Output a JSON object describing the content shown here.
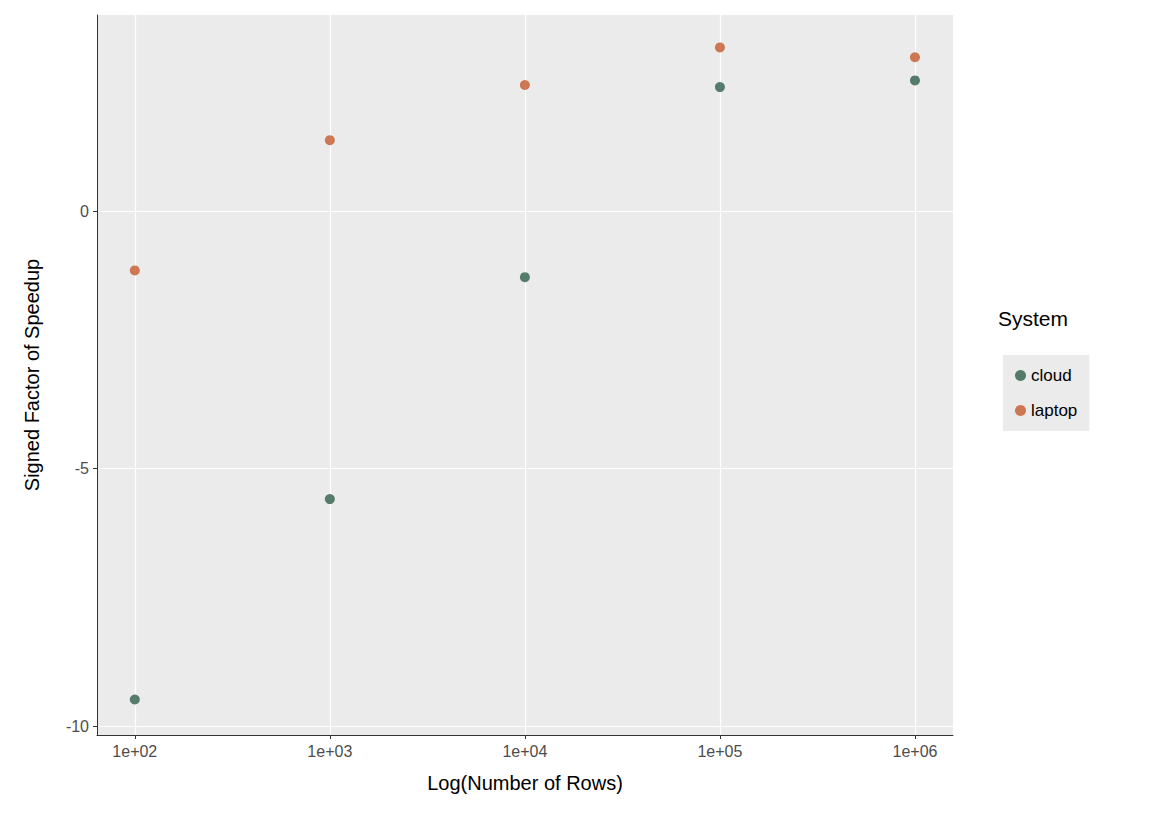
{
  "chart_data": {
    "type": "scatter",
    "x_label": "Log(Number of Rows)",
    "y_label": "Signed Factor of Speedup",
    "legend_title": "System",
    "legend": "right",
    "log": "x",
    "grid": true,
    "x": [
      100,
      1000,
      10000,
      100000,
      1000000
    ],
    "series": [
      {
        "name": "cloud",
        "color": "#2E5E4A",
        "values": [
          -9.48,
          -5.59,
          -1.28,
          2.41,
          2.54
        ]
      },
      {
        "name": "laptop",
        "color": "#C55A2C",
        "values": [
          -1.15,
          1.38,
          2.45,
          3.18,
          2.99
        ]
      }
    ],
    "xlim": [
      64,
      1567000
    ],
    "ylim": [
      -10.17,
      3.81
    ],
    "xticks": [
      {
        "value": 100,
        "label": "1e+02"
      },
      {
        "value": 1000,
        "label": "1e+03"
      },
      {
        "value": 10000,
        "label": "1e+04"
      },
      {
        "value": 100000,
        "label": "1e+05"
      },
      {
        "value": 1000000,
        "label": "1e+06"
      }
    ],
    "yticks": [
      -10,
      -5,
      0
    ]
  }
}
